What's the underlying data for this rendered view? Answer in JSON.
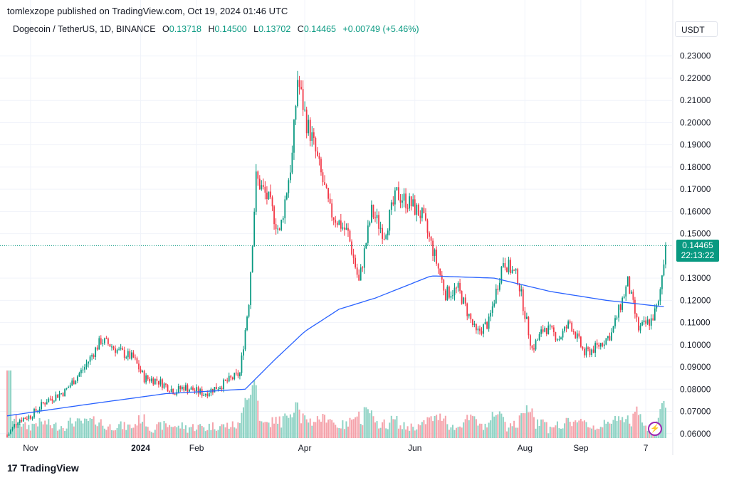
{
  "byline": "tomlexzope published on TradingView.com, Oct 19, 2024 01:46 UTC",
  "symbol_title": "Dogecoin / TetherUS, 1D, BINANCE",
  "ohlc": {
    "o_key": "O",
    "o_val": "0.13718",
    "h_key": "H",
    "h_val": "0.14500",
    "l_key": "L",
    "l_val": "0.13702",
    "c_key": "C",
    "c_val": "0.14465",
    "change": "+0.00749 (+5.46%)"
  },
  "currency": "USDT",
  "last_price": "0.14465",
  "countdown": "22:13:22",
  "footer_brand": "TradingView",
  "footer_mark": "17",
  "colors": {
    "up": "#089981",
    "down": "#f23645",
    "ma": "#2962ff",
    "vol_up": "#8fd3c5",
    "vol_down": "#f5a3ab"
  },
  "chart_data": {
    "type": "candlestick",
    "symbol": "DOGEUSDT",
    "interval": "1D",
    "y_range": [
      0.058,
      0.236
    ],
    "y_ticks": [
      "0.23000",
      "0.22000",
      "0.21000",
      "0.20000",
      "0.19000",
      "0.18000",
      "0.17000",
      "0.16000",
      "0.15000",
      "0.13000",
      "0.12000",
      "0.11000",
      "0.10000",
      "0.09000",
      "0.08000",
      "0.07000",
      "0.06000"
    ],
    "y_tick_values": [
      0.23,
      0.22,
      0.21,
      0.2,
      0.19,
      0.18,
      0.17,
      0.16,
      0.15,
      0.13,
      0.12,
      0.11,
      0.1,
      0.09,
      0.08,
      0.07,
      0.06
    ],
    "x_tick_labels": [
      "Nov",
      "2024",
      "Feb",
      "Apr",
      "Jun",
      "Aug",
      "Sep",
      "7"
    ],
    "x_tick_dates": [
      "2023-11-01",
      "2024-01-01",
      "2024-02-01",
      "2024-04-01",
      "2024-06-01",
      "2024-08-01",
      "2024-09-01",
      "2024-10-07"
    ],
    "date_range": [
      "2023-10-19",
      "2024-10-18"
    ],
    "price_anchors": [
      [
        "2023-10-19",
        0.059
      ],
      [
        "2023-10-25",
        0.066
      ],
      [
        "2023-11-01",
        0.068
      ],
      [
        "2023-11-10",
        0.075
      ],
      [
        "2023-11-20",
        0.079
      ],
      [
        "2023-12-01",
        0.09
      ],
      [
        "2023-12-10",
        0.102
      ],
      [
        "2023-12-15",
        0.1
      ],
      [
        "2023-12-20",
        0.097
      ],
      [
        "2023-12-28",
        0.094
      ],
      [
        "2024-01-03",
        0.085
      ],
      [
        "2024-01-10",
        0.084
      ],
      [
        "2024-01-20",
        0.079
      ],
      [
        "2024-01-25",
        0.081
      ],
      [
        "2024-02-05",
        0.078
      ],
      [
        "2024-02-15",
        0.082
      ],
      [
        "2024-02-25",
        0.087
      ],
      [
        "2024-03-01",
        0.12
      ],
      [
        "2024-03-05",
        0.175
      ],
      [
        "2024-03-12",
        0.165
      ],
      [
        "2024-03-18",
        0.15
      ],
      [
        "2024-03-25",
        0.185
      ],
      [
        "2024-03-28",
        0.22
      ],
      [
        "2024-04-02",
        0.2
      ],
      [
        "2024-04-05",
        0.193
      ],
      [
        "2024-04-12",
        0.17
      ],
      [
        "2024-04-15",
        0.16
      ],
      [
        "2024-04-25",
        0.15
      ],
      [
        "2024-05-01",
        0.128
      ],
      [
        "2024-05-08",
        0.16
      ],
      [
        "2024-05-15",
        0.15
      ],
      [
        "2024-05-22",
        0.168
      ],
      [
        "2024-05-30",
        0.163
      ],
      [
        "2024-06-05",
        0.158
      ],
      [
        "2024-06-12",
        0.14
      ],
      [
        "2024-06-18",
        0.123
      ],
      [
        "2024-06-25",
        0.125
      ],
      [
        "2024-07-05",
        0.105
      ],
      [
        "2024-07-12",
        0.11
      ],
      [
        "2024-07-20",
        0.138
      ],
      [
        "2024-07-28",
        0.13
      ],
      [
        "2024-08-05",
        0.098
      ],
      [
        "2024-08-12",
        0.108
      ],
      [
        "2024-08-20",
        0.103
      ],
      [
        "2024-08-26",
        0.11
      ],
      [
        "2024-09-03",
        0.096
      ],
      [
        "2024-09-10",
        0.099
      ],
      [
        "2024-09-18",
        0.105
      ],
      [
        "2024-09-27",
        0.128
      ],
      [
        "2024-10-03",
        0.107
      ],
      [
        "2024-10-10",
        0.111
      ],
      [
        "2024-10-14",
        0.118
      ],
      [
        "2024-10-18",
        0.14465
      ]
    ],
    "ma_anchors": [
      [
        "2023-10-19",
        0.068
      ],
      [
        "2023-12-01",
        0.073
      ],
      [
        "2024-01-15",
        0.078
      ],
      [
        "2024-02-28",
        0.08
      ],
      [
        "2024-03-15",
        0.093
      ],
      [
        "2024-04-01",
        0.106
      ],
      [
        "2024-04-20",
        0.116
      ],
      [
        "2024-05-10",
        0.121
      ],
      [
        "2024-06-10",
        0.131
      ],
      [
        "2024-07-15",
        0.13
      ],
      [
        "2024-08-15",
        0.124
      ],
      [
        "2024-09-15",
        0.12
      ],
      [
        "2024-10-18",
        0.117
      ]
    ]
  }
}
